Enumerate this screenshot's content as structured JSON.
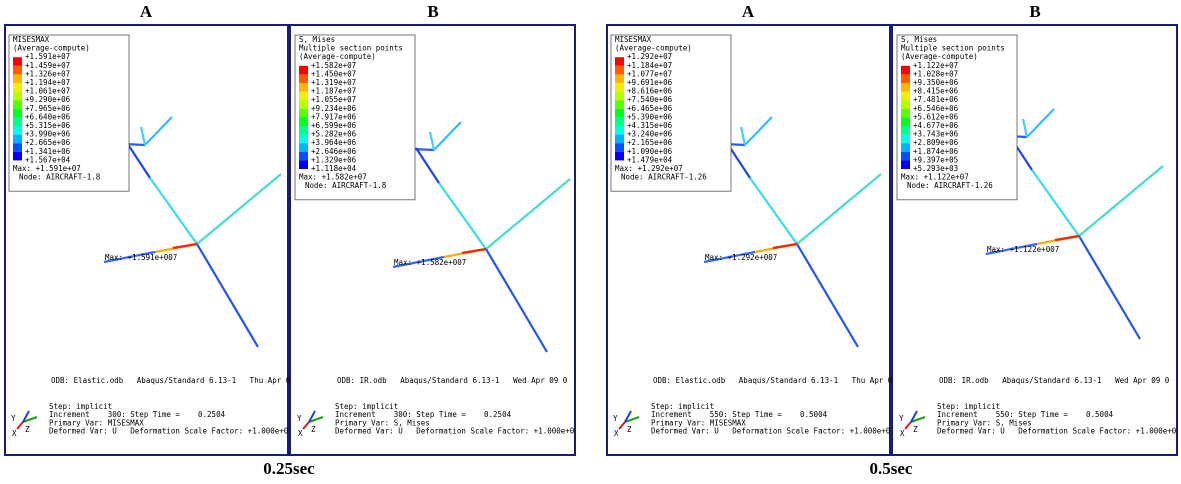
{
  "groups": [
    {
      "caption": "0.25sec",
      "panels": [
        {
          "header": "A",
          "legend_title": [
            "MISESMAX",
            "(Average-compute)"
          ],
          "legend_values": [
            "+1.591e+07",
            "+1.459e+07",
            "+1.326e+07",
            "+1.194e+07",
            "+1.061e+07",
            "+9.290e+06",
            "+7.965e+06",
            "+6.640e+06",
            "+5.315e+06",
            "+3.990e+06",
            "+2.665e+06",
            "+1.341e+06",
            "+1.567e+04"
          ],
          "max": "Max: +1.591e+07",
          "node": "Node: AIRCRAFT-1.8",
          "annotation": "Max: +1.591e+007",
          "odb": "ODB: Elastic.odb   Abaqus/Standard 6.13-1   Thu Apr 0",
          "step": [
            "Step: implicit",
            "Increment    300: Step Time =    0.2504",
            "Primary Var: MISESMAX",
            "Deformed Var: U   Deformation Scale Factor: +1.000e+0"
          ],
          "triad": [
            "Y",
            "Z",
            "X"
          ]
        },
        {
          "header": "B",
          "legend_title": [
            "S, Mises",
            "Multiple section points",
            "(Average-compute)"
          ],
          "legend_values": [
            "+1.582e+07",
            "+1.450e+07",
            "+1.319e+07",
            "+1.187e+07",
            "+1.055e+07",
            "+9.234e+06",
            "+7.917e+06",
            "+6.599e+06",
            "+5.282e+06",
            "+3.964e+06",
            "+2.646e+06",
            "+1.329e+06",
            "+1.118e+04"
          ],
          "max": "Max: +1.582e+07",
          "node": "Node: AIRCRAFT-1.8",
          "annotation": "Max: +1.582e+007",
          "odb": "ODB: IR.odb   Abaqus/Standard 6.13-1   Wed Apr 09 0",
          "step": [
            "Step: implicit",
            "Increment    300: Step Time =    0.2504",
            "Primary Var: S, Mises",
            "Deformed Var: U   Deformation Scale Factor: +1.000e+0"
          ],
          "triad": [
            "Y",
            "Z",
            "X"
          ]
        }
      ]
    },
    {
      "caption": "0.5sec",
      "panels": [
        {
          "header": "A",
          "legend_title": [
            "MISESMAX",
            "(Average-compute)"
          ],
          "legend_values": [
            "+1.292e+07",
            "+1.184e+07",
            "+1.077e+07",
            "+9.691e+06",
            "+8.616e+06",
            "+7.540e+06",
            "+6.465e+06",
            "+5.390e+06",
            "+4.315e+06",
            "+3.240e+06",
            "+2.165e+06",
            "+1.090e+06",
            "+1.479e+04"
          ],
          "max": "Max: +1.292e+07",
          "node": "Node: AIRCRAFT-1.26",
          "annotation": "Max: +1.292e+007",
          "odb": "ODB: Elastic.odb   Abaqus/Standard 6.13-1   Thu Apr 0",
          "step": [
            "Step: implicit",
            "Increment    550: Step Time =    0.5004",
            "Primary Var: MISESMAX",
            "Deformed Var: U   Deformation Scale Factor: +1.000e+0"
          ],
          "triad": [
            "Y",
            "Z",
            "X"
          ]
        },
        {
          "header": "B",
          "legend_title": [
            "S, Mises",
            "Multiple section points",
            "(Average-compute)"
          ],
          "legend_values": [
            "+1.122e+07",
            "+1.028e+07",
            "+9.350e+06",
            "+8.415e+06",
            "+7.481e+06",
            "+6.546e+06",
            "+5.612e+06",
            "+4.677e+06",
            "+3.743e+06",
            "+2.809e+06",
            "+1.874e+06",
            "+9.397e+05",
            "+5.293e+03"
          ],
          "max": "Max: +1.122e+07",
          "node": "Node: AIRCRAFT-1.26",
          "annotation": "Max: +1.122e+007",
          "odb": "ODB: IR.odb   Abaqus/Standard 6.13-1   Wed Apr 09 0",
          "step": [
            "Step: implicit",
            "Increment    550: Step Time =    0.5004",
            "Primary Var: S, Mises",
            "Deformed Var: U   Deformation Scale Factor: +1.000e+0"
          ],
          "triad": [
            "Y",
            "Z",
            "X"
          ]
        }
      ]
    }
  ]
}
